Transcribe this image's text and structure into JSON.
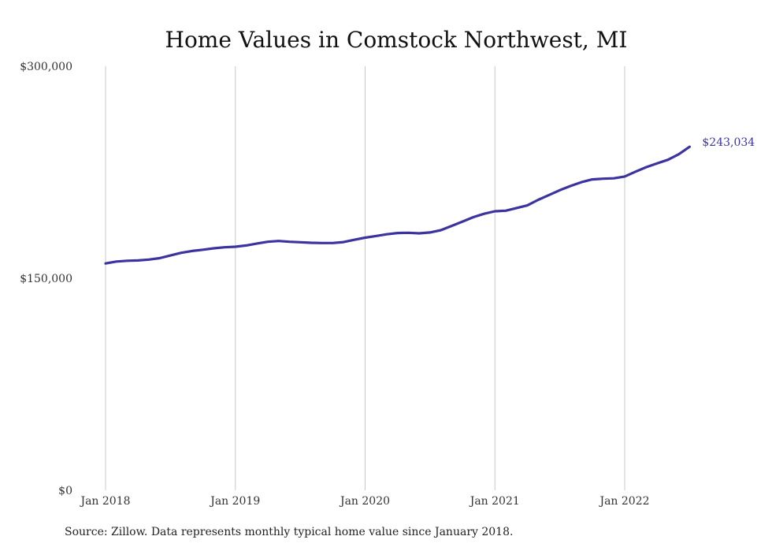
{
  "chart_data": {
    "type": "line",
    "title": "Home Values in Comstock Northwest, MI",
    "x_ticks": [
      "Jan 2018",
      "Jan 2019",
      "Jan 2020",
      "Jan 2021",
      "Jan 2022"
    ],
    "y_ticks": [
      "$0",
      "$150,000",
      "$300,000"
    ],
    "ylim": [
      0,
      300000
    ],
    "grid": "vertical",
    "series": [
      {
        "color": "#3b34a0",
        "x": [
          "2018-01",
          "2018-02",
          "2018-03",
          "2018-04",
          "2018-05",
          "2018-06",
          "2018-07",
          "2018-08",
          "2018-09",
          "2018-10",
          "2018-11",
          "2018-12",
          "2019-01",
          "2019-02",
          "2019-03",
          "2019-04",
          "2019-05",
          "2019-06",
          "2019-07",
          "2019-08",
          "2019-09",
          "2019-10",
          "2019-11",
          "2019-12",
          "2020-01",
          "2020-02",
          "2020-03",
          "2020-04",
          "2020-05",
          "2020-06",
          "2020-07",
          "2020-08",
          "2020-09",
          "2020-10",
          "2020-11",
          "2020-12",
          "2021-01",
          "2021-02",
          "2021-03",
          "2021-04",
          "2021-05",
          "2021-06",
          "2021-07",
          "2021-08",
          "2021-09",
          "2021-10",
          "2021-11",
          "2021-12",
          "2022-01",
          "2022-02",
          "2022-03",
          "2022-04",
          "2022-05",
          "2022-06",
          "2022-07"
        ],
        "values": [
          160500,
          161800,
          162400,
          162600,
          163200,
          164200,
          166100,
          168000,
          169300,
          170200,
          171200,
          171900,
          172300,
          173200,
          174600,
          175800,
          176400,
          175800,
          175500,
          175100,
          174900,
          174900,
          175600,
          177200,
          178700,
          179900,
          181100,
          182000,
          182200,
          181800,
          182400,
          184000,
          187000,
          190100,
          193200,
          195600,
          197400,
          197800,
          199700,
          201500,
          205500,
          208900,
          212300,
          215300,
          218000,
          219900,
          220400,
          220700,
          222000,
          225400,
          228600,
          231300,
          233800,
          237700,
          243034
        ]
      }
    ],
    "end_label": "$243,034",
    "source": "Source: Zillow. Data represents monthly typical home value since January 2018."
  }
}
